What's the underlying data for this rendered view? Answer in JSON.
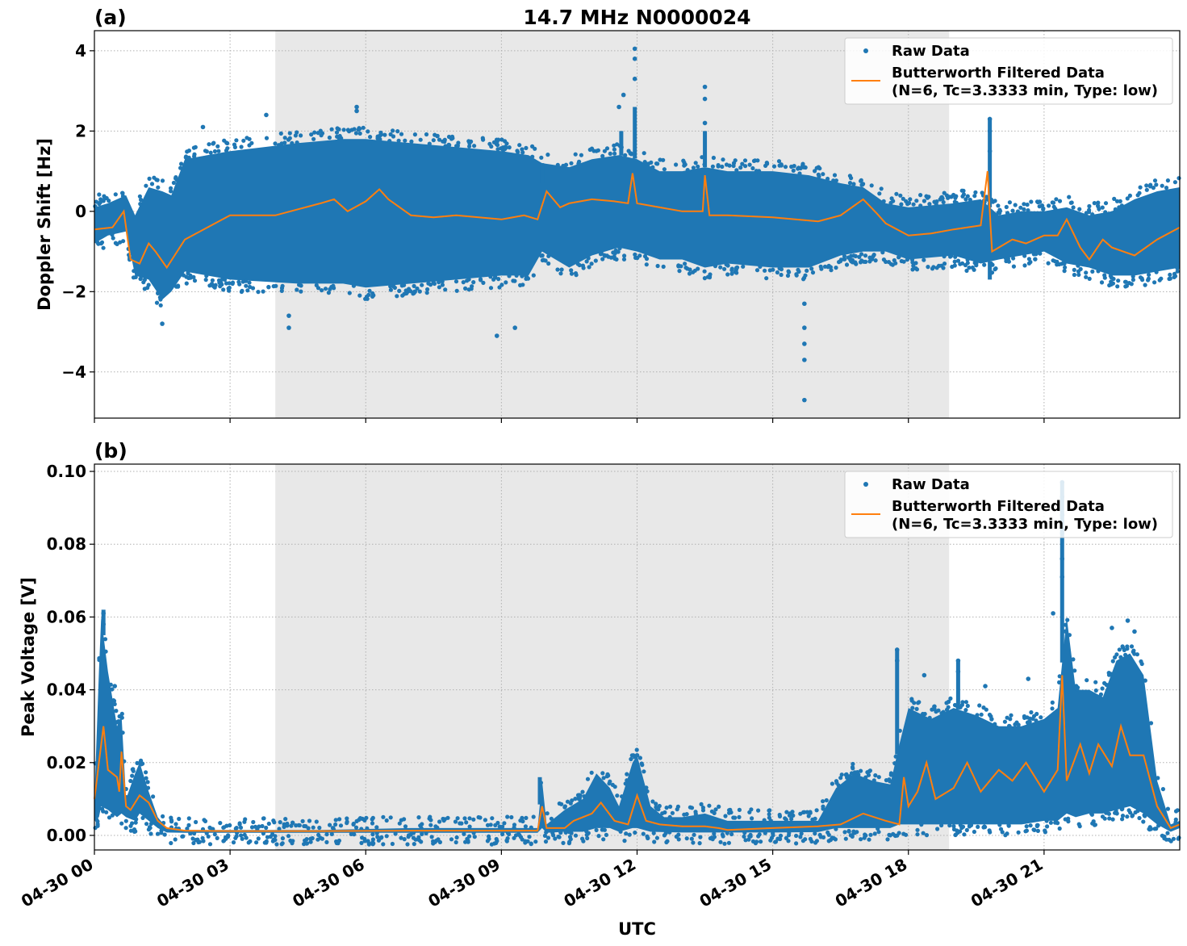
{
  "chart_data": [
    {
      "type": "scatter",
      "panel_label": "(a)",
      "title": "14.7 MHz N0000024",
      "xlabel": "",
      "ylabel": "Doppler Shift [Hz]",
      "x_unit": "hours UTC since 04-30 00",
      "xlim": [
        0,
        24
      ],
      "ylim": [
        -5.15,
        4.5
      ],
      "yticks": [
        -4,
        -2,
        0,
        2,
        4
      ],
      "ytick_labels": [
        "−4",
        "−2",
        "0",
        "2",
        "4"
      ],
      "grid": true,
      "shaded_region": {
        "x_start": 4.0,
        "x_end": 18.9,
        "color": "#e8e8e8"
      },
      "legend": {
        "placement": "upper-right",
        "entries": [
          "Raw Data",
          "Butterworth Filtered Data",
          "(N=6, Tc=3.3333 min, Type: low)"
        ]
      },
      "series": [
        {
          "name": "Raw Data",
          "kind": "scatter-envelope",
          "color": "#1f77b4",
          "x": [
            0,
            0.3,
            0.7,
            0.9,
            1.2,
            1.5,
            1.7,
            2.0,
            3.0,
            4.5,
            5.5,
            6.0,
            7.0,
            8.0,
            9.0,
            9.6,
            9.9,
            10.5,
            11.0,
            11.6,
            12.0,
            12.5,
            13.0,
            13.5,
            14.0,
            15.0,
            15.8,
            16.5,
            17.0,
            17.5,
            18.0,
            19.0,
            19.6,
            20.0,
            20.5,
            21.0,
            21.5,
            22.0,
            22.5,
            23.0,
            23.5,
            24.0
          ],
          "upper": [
            0.1,
            0.2,
            0.4,
            -0.1,
            0.6,
            0.5,
            0.4,
            1.3,
            1.5,
            1.7,
            1.8,
            1.8,
            1.7,
            1.6,
            1.5,
            1.4,
            1.2,
            1.1,
            1.3,
            1.4,
            1.3,
            1.0,
            1.0,
            1.1,
            1.0,
            1.0,
            0.9,
            0.7,
            0.6,
            0.2,
            0.1,
            0.2,
            0.3,
            -0.1,
            0.0,
            0.0,
            0.1,
            -0.1,
            0.0,
            0.3,
            0.5,
            0.6
          ],
          "lower": [
            -0.8,
            -0.6,
            -0.5,
            -1.6,
            -1.7,
            -2.2,
            -2.0,
            -1.5,
            -1.7,
            -1.8,
            -1.8,
            -1.9,
            -1.8,
            -1.7,
            -1.6,
            -1.6,
            -1.0,
            -1.4,
            -1.1,
            -0.9,
            -1.0,
            -1.2,
            -1.2,
            -1.4,
            -1.3,
            -1.4,
            -1.4,
            -1.1,
            -1.0,
            -1.0,
            -1.2,
            -1.1,
            -1.3,
            -1.2,
            -1.1,
            -1.0,
            -1.3,
            -1.4,
            -1.6,
            -1.6,
            -1.5,
            -1.4
          ],
          "outliers": [
            [
              2.4,
              2.1
            ],
            [
              3.8,
              2.4
            ],
            [
              4.3,
              -2.9
            ],
            [
              4.3,
              -2.6
            ],
            [
              5.8,
              2.5
            ],
            [
              5.8,
              2.6
            ],
            [
              8.9,
              -3.1
            ],
            [
              9.3,
              -2.9
            ],
            [
              11.95,
              4.05
            ],
            [
              11.95,
              3.8
            ],
            [
              11.95,
              3.3
            ],
            [
              11.7,
              2.9
            ],
            [
              11.6,
              2.6
            ],
            [
              13.5,
              3.1
            ],
            [
              13.5,
              2.8
            ],
            [
              13.5,
              2.2
            ],
            [
              15.7,
              -4.7
            ],
            [
              15.7,
              -3.7
            ],
            [
              15.7,
              -3.3
            ],
            [
              15.7,
              -2.9
            ],
            [
              15.7,
              -2.3
            ],
            [
              19.8,
              2.3
            ],
            [
              19.8,
              2.0
            ],
            [
              19.8,
              1.5
            ],
            [
              1.5,
              -2.8
            ]
          ],
          "spikes": [
            [
              9.9,
              0.7
            ],
            [
              11.65,
              2.0
            ],
            [
              11.95,
              2.6
            ],
            [
              13.5,
              2.0
            ],
            [
              19.8,
              2.3
            ],
            [
              19.8,
              -1.7
            ]
          ]
        },
        {
          "name": "Butterworth Filtered Data",
          "kind": "line",
          "color": "#ff7f0e",
          "x": [
            0,
            0.4,
            0.65,
            0.8,
            1.0,
            1.2,
            1.35,
            1.6,
            2.0,
            2.5,
            3.0,
            3.5,
            4.0,
            4.5,
            5.0,
            5.3,
            5.6,
            6.0,
            6.3,
            6.5,
            7.0,
            7.5,
            8.0,
            8.5,
            9.0,
            9.5,
            9.8,
            10.0,
            10.3,
            10.5,
            11.0,
            11.5,
            11.8,
            11.9,
            12.0,
            12.5,
            13.0,
            13.45,
            13.5,
            13.6,
            14.0,
            15.0,
            16.0,
            16.5,
            17.0,
            17.3,
            17.5,
            18.0,
            18.5,
            19.0,
            19.6,
            19.75,
            19.85,
            20.0,
            20.3,
            20.6,
            21.0,
            21.3,
            21.5,
            21.8,
            22.0,
            22.3,
            22.5,
            23.0,
            23.5,
            24.0
          ],
          "y": [
            -0.45,
            -0.4,
            0.0,
            -1.2,
            -1.3,
            -0.8,
            -1.0,
            -1.4,
            -0.7,
            -0.4,
            -0.1,
            -0.1,
            -0.1,
            0.05,
            0.2,
            0.3,
            0.0,
            0.25,
            0.55,
            0.3,
            -0.1,
            -0.15,
            -0.1,
            -0.15,
            -0.2,
            -0.1,
            -0.2,
            0.5,
            0.1,
            0.2,
            0.3,
            0.25,
            0.2,
            0.95,
            0.2,
            0.1,
            0.0,
            0.0,
            0.9,
            -0.1,
            -0.1,
            -0.15,
            -0.25,
            -0.1,
            0.3,
            -0.05,
            -0.3,
            -0.6,
            -0.55,
            -0.45,
            -0.35,
            1.0,
            -1.0,
            -0.9,
            -0.7,
            -0.8,
            -0.6,
            -0.6,
            -0.2,
            -0.9,
            -1.2,
            -0.7,
            -0.9,
            -1.1,
            -0.7,
            -0.4
          ]
        }
      ]
    },
    {
      "type": "scatter",
      "panel_label": "(b)",
      "title": "",
      "xlabel": "UTC",
      "ylabel": "Peak Voltage [V]",
      "x_unit": "hours UTC since 04-30 00",
      "xlim": [
        0,
        24
      ],
      "ylim": [
        -0.004,
        0.102
      ],
      "yticks": [
        0.0,
        0.02,
        0.04,
        0.06,
        0.08,
        0.1
      ],
      "ytick_labels": [
        "0.00",
        "0.02",
        "0.04",
        "0.06",
        "0.08",
        "0.10"
      ],
      "xticks": [
        0,
        3,
        6,
        9,
        12,
        15,
        18,
        21
      ],
      "xtick_labels": [
        "04-30 00",
        "04-30 03",
        "04-30 06",
        "04-30 09",
        "04-30 12",
        "04-30 15",
        "04-30 18",
        "04-30 21"
      ],
      "grid": true,
      "shaded_region": {
        "x_start": 4.0,
        "x_end": 18.9,
        "color": "#e8e8e8"
      },
      "legend": {
        "placement": "upper-right",
        "entries": [
          "Raw Data",
          "Butterworth Filtered Data",
          "(N=6, Tc=3.3333 min, Type: low)"
        ]
      },
      "series": [
        {
          "name": "Raw Data",
          "kind": "scatter-envelope",
          "color": "#1f77b4",
          "x": [
            0,
            0.1,
            0.15,
            0.3,
            0.5,
            0.6,
            0.7,
            0.9,
            1.0,
            1.2,
            1.4,
            1.6,
            2.0,
            3.0,
            5.0,
            7.0,
            9.0,
            9.8,
            9.9,
            10.0,
            10.4,
            10.8,
            11.1,
            11.4,
            11.6,
            11.9,
            12.0,
            12.3,
            12.6,
            13.0,
            13.5,
            14.0,
            14.5,
            15.0,
            16.0,
            16.4,
            16.8,
            17.2,
            17.6,
            17.8,
            18.0,
            18.5,
            19.0,
            19.5,
            20.0,
            20.5,
            21.0,
            21.3,
            21.5,
            21.7,
            22.0,
            22.3,
            22.6,
            22.9,
            23.2,
            23.5,
            23.8,
            24.0
          ],
          "upper": [
            0.01,
            0.045,
            0.06,
            0.045,
            0.03,
            0.033,
            0.01,
            0.017,
            0.02,
            0.012,
            0.005,
            0.002,
            0.0015,
            0.0015,
            0.0015,
            0.002,
            0.002,
            0.002,
            0.015,
            0.003,
            0.007,
            0.01,
            0.017,
            0.013,
            0.008,
            0.02,
            0.022,
            0.008,
            0.005,
            0.005,
            0.006,
            0.004,
            0.004,
            0.004,
            0.004,
            0.013,
            0.017,
            0.015,
            0.014,
            0.025,
            0.035,
            0.032,
            0.035,
            0.033,
            0.03,
            0.03,
            0.032,
            0.035,
            0.06,
            0.04,
            0.04,
            0.038,
            0.048,
            0.05,
            0.044,
            0.015,
            0.003,
            0.004
          ],
          "lower": [
            0.004,
            0.005,
            0.008,
            0.007,
            0.005,
            0.006,
            0.005,
            0.004,
            0.006,
            0.004,
            0.002,
            0.0008,
            0.0007,
            0.0007,
            0.0007,
            0.0007,
            0.0007,
            0.0007,
            0.002,
            0.0007,
            0.001,
            0.001,
            0.002,
            0.002,
            0.001,
            0.002,
            0.002,
            0.001,
            0.0009,
            0.0008,
            0.0008,
            0.0008,
            0.0008,
            0.0008,
            0.0009,
            0.002,
            0.002,
            0.002,
            0.002,
            0.003,
            0.003,
            0.003,
            0.003,
            0.003,
            0.003,
            0.003,
            0.004,
            0.004,
            0.006,
            0.005,
            0.006,
            0.006,
            0.007,
            0.008,
            0.006,
            0.003,
            0.001,
            0.002
          ],
          "outliers": [
            [
              0.2,
              0.061
            ],
            [
              0.2,
              0.058
            ],
            [
              0.45,
              0.041
            ],
            [
              12.0,
              0.022
            ],
            [
              17.75,
              0.051
            ],
            [
              17.75,
              0.048
            ],
            [
              18.35,
              0.044
            ],
            [
              19.1,
              0.048
            ],
            [
              19.1,
              0.045
            ],
            [
              19.7,
              0.041
            ],
            [
              20.65,
              0.043
            ],
            [
              21.4,
              0.097
            ],
            [
              21.4,
              0.093
            ],
            [
              21.4,
              0.088
            ],
            [
              21.4,
              0.083
            ],
            [
              21.4,
              0.076
            ],
            [
              21.4,
              0.071
            ],
            [
              21.2,
              0.061
            ],
            [
              22.5,
              0.057
            ],
            [
              22.85,
              0.059
            ],
            [
              23.0,
              0.056
            ]
          ],
          "spikes": [
            [
              0.2,
              0.062
            ],
            [
              9.85,
              0.016
            ],
            [
              11.95,
              0.022
            ],
            [
              17.75,
              0.051
            ],
            [
              19.1,
              0.048
            ],
            [
              21.4,
              0.097
            ]
          ]
        },
        {
          "name": "Butterworth Filtered Data",
          "kind": "line",
          "color": "#ff7f0e",
          "x": [
            0,
            0.1,
            0.2,
            0.3,
            0.4,
            0.5,
            0.55,
            0.6,
            0.7,
            0.8,
            0.9,
            1.0,
            1.2,
            1.4,
            1.6,
            2.0,
            3.0,
            5.0,
            7.0,
            9.0,
            9.8,
            9.9,
            10.0,
            10.4,
            10.6,
            11.0,
            11.2,
            11.5,
            11.8,
            12.0,
            12.2,
            12.5,
            13.0,
            13.5,
            13.8,
            14.0,
            15.0,
            16.0,
            16.5,
            17.0,
            17.5,
            17.8,
            17.9,
            18.0,
            18.2,
            18.4,
            18.6,
            19.0,
            19.3,
            19.6,
            20.0,
            20.3,
            20.6,
            21.0,
            21.3,
            21.4,
            21.5,
            21.8,
            22.0,
            22.2,
            22.5,
            22.7,
            22.9,
            23.2,
            23.5,
            23.8,
            24.0
          ],
          "y": [
            0.01,
            0.02,
            0.03,
            0.018,
            0.017,
            0.016,
            0.012,
            0.023,
            0.008,
            0.007,
            0.009,
            0.011,
            0.009,
            0.004,
            0.002,
            0.0013,
            0.0012,
            0.0012,
            0.0013,
            0.0013,
            0.0013,
            0.008,
            0.002,
            0.002,
            0.004,
            0.006,
            0.009,
            0.004,
            0.003,
            0.011,
            0.004,
            0.003,
            0.0025,
            0.0025,
            0.002,
            0.0015,
            0.002,
            0.0025,
            0.003,
            0.006,
            0.004,
            0.003,
            0.016,
            0.008,
            0.012,
            0.02,
            0.01,
            0.013,
            0.02,
            0.012,
            0.018,
            0.015,
            0.02,
            0.012,
            0.018,
            0.044,
            0.015,
            0.025,
            0.017,
            0.025,
            0.019,
            0.03,
            0.022,
            0.022,
            0.008,
            0.002,
            0.003
          ]
        }
      ]
    }
  ]
}
